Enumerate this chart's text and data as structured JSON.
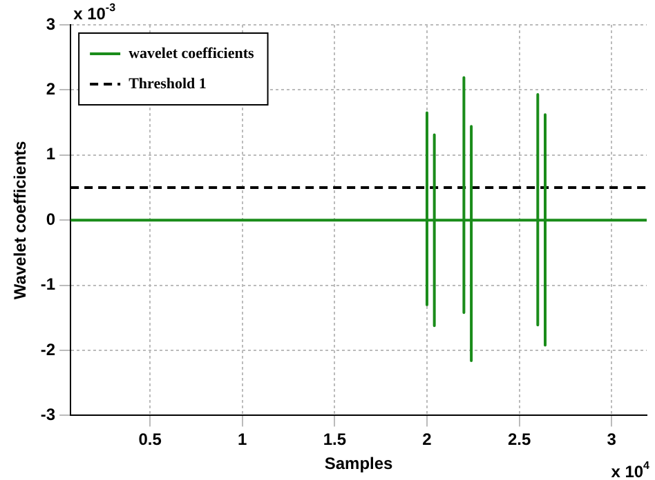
{
  "chart_data": {
    "type": "line",
    "xlabel": "Samples",
    "ylabel": "Wavelet coefficients",
    "xlim": [
      0.07,
      3.19
    ],
    "xticks": [
      0.5,
      1,
      1.5,
      2,
      2.5,
      3
    ],
    "ylim": [
      -3,
      3
    ],
    "yticks": [
      -3,
      -2,
      -1,
      0,
      1,
      2,
      3
    ],
    "grid": true,
    "legend": "top left",
    "marker": "none",
    "annotations": [
      "x 10$^{-3}$",
      "x 10$^{4}$"
    ],
    "series": [
      {
        "name": "wavelet coefficients",
        "color": "#1a8c1a",
        "line_style": "solid",
        "x": [
          0.07,
          2.0,
          2.0,
          2.0,
          2.0,
          2.04,
          2.04,
          2.04,
          2.04,
          2.2,
          2.2,
          2.2,
          2.2,
          2.24,
          2.24,
          2.24,
          2.24,
          2.6,
          2.6,
          2.6,
          2.6,
          2.64,
          2.64,
          2.64,
          2.64,
          3.19
        ],
        "values": [
          0,
          0,
          1.65,
          -1.3,
          0,
          0,
          1.31,
          -1.62,
          0,
          0,
          2.19,
          -1.42,
          0,
          0,
          1.44,
          -2.16,
          0,
          0,
          1.93,
          -1.61,
          0,
          0,
          1.62,
          -1.92,
          0,
          0
        ]
      },
      {
        "name": "Threshold 1",
        "color": "#000000",
        "line_style": "dashed",
        "x": [
          0.07,
          3.19
        ],
        "values": [
          0.5,
          0.5
        ]
      }
    ]
  }
}
